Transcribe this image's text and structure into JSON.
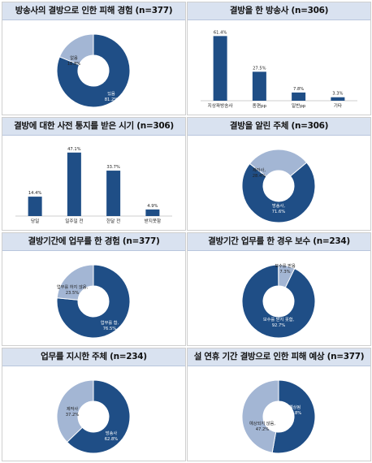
{
  "colors": {
    "primary": "#1f4e86",
    "secondary": "#a3b6d4",
    "title_bg": "#d9e2f0",
    "label_light": "#ffffff",
    "label_dark": "#222222"
  },
  "chart_data": [
    {
      "type": "pie",
      "title": "방송사의 결방으로 인한 피해 경험 (n=377)",
      "slices": [
        {
          "label": "있음",
          "value": 81.2,
          "value_label": "81.2%"
        },
        {
          "label": "없음",
          "value": 18.8,
          "value_label": "18.8%"
        }
      ]
    },
    {
      "type": "bar",
      "title": "결방을 한 방송사 (n=306)",
      "categories": [
        "지상파방송사",
        "종편pp",
        "일반pp",
        "기타"
      ],
      "values": [
        61.4,
        27.5,
        7.8,
        3.3
      ],
      "value_labels": [
        "61.4%",
        "27.5%",
        "7.8%",
        "3.3%"
      ]
    },
    {
      "type": "bar",
      "title": "결방에 대한 사전 통지를 받은 시기 (n=306)",
      "categories": [
        "당일",
        "일주일 전",
        "한달 전",
        "받지못함"
      ],
      "values": [
        14.4,
        47.1,
        33.7,
        4.9
      ],
      "value_labels": [
        "14.4%",
        "47.1%",
        "33.7%",
        "4.9%"
      ]
    },
    {
      "type": "pie",
      "title": "결방을 알린 주체 (n=306)",
      "slices": [
        {
          "label": "방송사,",
          "value": 71.6,
          "value_label": "71.6%"
        },
        {
          "label": "제작사,",
          "value": 28.4,
          "value_label": "28.4%"
        }
      ]
    },
    {
      "type": "pie",
      "title": "결방기간에 업무를 한 경험 (n=377)",
      "slices": [
        {
          "label": "업무를 함,",
          "value": 76.5,
          "value_label": "76.5%"
        },
        {
          "label": "업무를 하지 않음,",
          "value": 23.5,
          "value_label": "23.5%"
        }
      ]
    },
    {
      "type": "pie",
      "title": "결방기간 업무를 한 경우 보수 (n=234)",
      "slices": [
        {
          "label": "보수를 받지 못함,",
          "value": 92.7,
          "value_label": "92.7%"
        },
        {
          "label": "보수를 받음",
          "value": 7.3,
          "value_label": "7.3%"
        }
      ]
    },
    {
      "type": "pie",
      "title": "업무를 지시한 주체 (n=234)",
      "slices": [
        {
          "label": "방송사",
          "value": 62.8,
          "value_label": "62.8%"
        },
        {
          "label": "제작사",
          "value": 37.2,
          "value_label": "37.2%"
        }
      ]
    },
    {
      "type": "pie",
      "title": "설 연휴 기간 결방으로 인한 피해 예상 (n=377)",
      "slices": [
        {
          "label": "예상됨",
          "value": 52.8,
          "value_label": "52.8%"
        },
        {
          "label": "예상되지 않음,",
          "value": 47.2,
          "value_label": "47.2%"
        }
      ]
    }
  ]
}
